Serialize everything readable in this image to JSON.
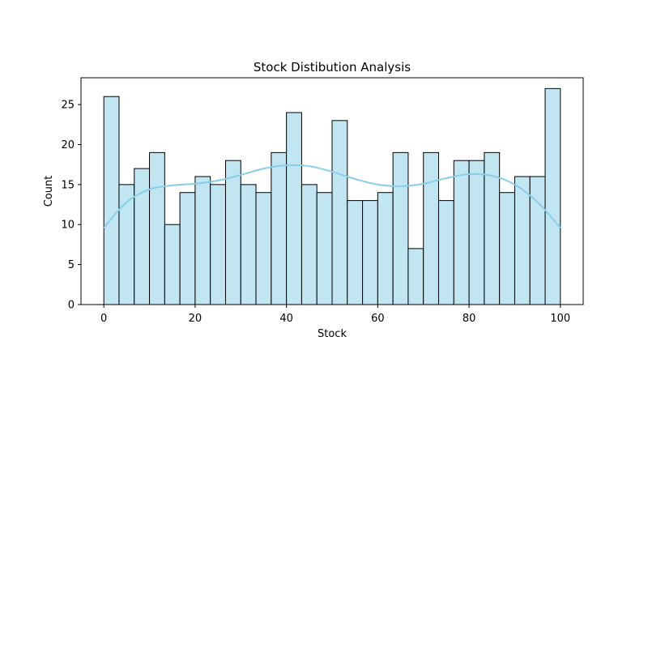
{
  "chart_data": {
    "type": "bar",
    "subtype": "histogram_with_kde",
    "title": "Stock Distibution Analysis",
    "xlabel": "Stock",
    "ylabel": "Count",
    "xlim": [
      -5,
      105
    ],
    "ylim": [
      0,
      28.35
    ],
    "xticks": [
      0,
      20,
      40,
      60,
      80,
      100
    ],
    "yticks": [
      0,
      5,
      10,
      15,
      20,
      25
    ],
    "bin_range": [
      0,
      100
    ],
    "counts": [
      26,
      15,
      17,
      19,
      10,
      14,
      16,
      15,
      18,
      15,
      14,
      19,
      24,
      15,
      14,
      23,
      13,
      13,
      14,
      19,
      7,
      19,
      13,
      18,
      18,
      19,
      14,
      16,
      16,
      27
    ],
    "kde": {
      "x": [
        0,
        5,
        10,
        15,
        20,
        25,
        30,
        35,
        40,
        45,
        50,
        55,
        60,
        65,
        70,
        75,
        80,
        85,
        90,
        95,
        100
      ],
      "y": [
        9.6,
        12.8,
        14.4,
        14.9,
        15.1,
        15.5,
        16.2,
        17.0,
        17.4,
        17.3,
        16.6,
        15.7,
        15.0,
        14.8,
        15.1,
        15.8,
        16.3,
        16.1,
        15.0,
        12.8,
        9.6
      ]
    },
    "grid": false,
    "colors": {
      "bar_fill": "#c2e5f2",
      "bar_edge": "#000000",
      "kde_line": "#87ceeb"
    }
  }
}
